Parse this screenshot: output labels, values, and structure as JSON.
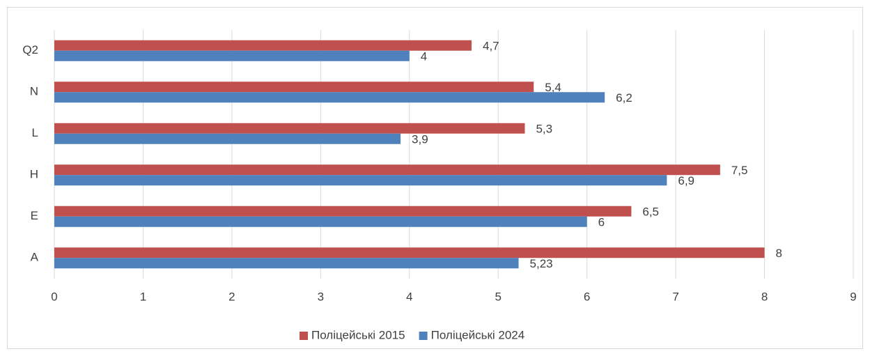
{
  "chart_data": {
    "type": "hbar",
    "categories": [
      "A",
      "E",
      "H",
      "L",
      "N",
      "Q2"
    ],
    "series": [
      {
        "name": "Поліцейські 2015",
        "color": "#c0504d",
        "values": [
          8,
          6.5,
          7.5,
          5.3,
          5.4,
          4.7
        ],
        "value_labels": [
          "8",
          "6,5",
          "7,5",
          "5,3",
          "5,4",
          "4,7"
        ]
      },
      {
        "name": "Поліцейські 2024",
        "color": "#4f81bd",
        "values": [
          5.23,
          6,
          6.9,
          3.9,
          6.2,
          4
        ],
        "value_labels": [
          "5,23",
          "6",
          "6,9",
          "3,9",
          "6,2",
          "4"
        ]
      }
    ],
    "xlim": [
      0,
      9
    ],
    "xticks": [
      0,
      1,
      2,
      3,
      4,
      5,
      6,
      7,
      8,
      9
    ],
    "grid": true,
    "legend": "bottom"
  }
}
